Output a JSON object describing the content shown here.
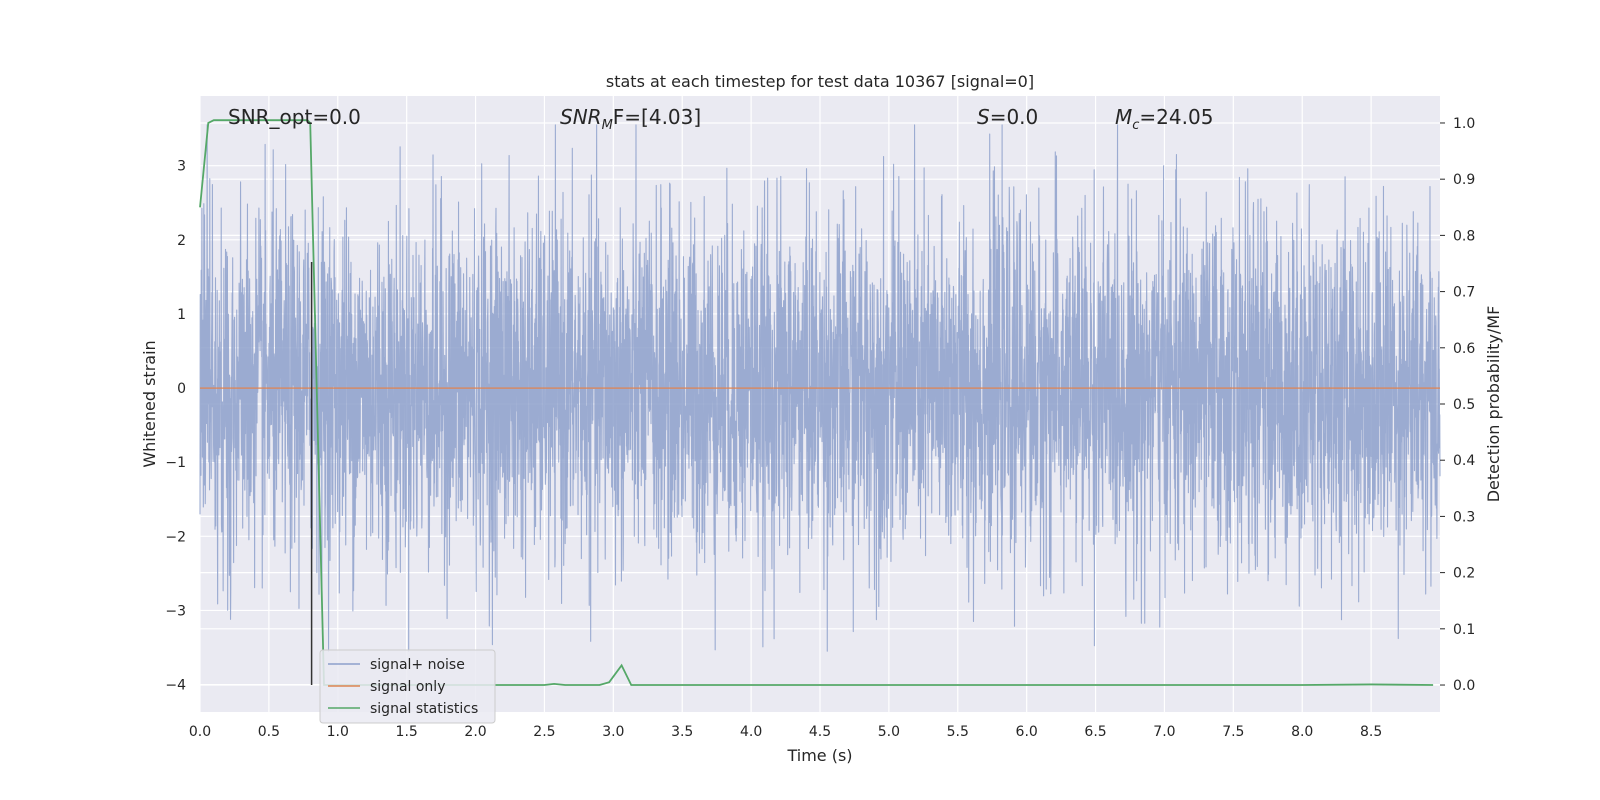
{
  "chart_data": {
    "type": "line",
    "title": "stats at each timestep for test data 10367 [signal=0]",
    "xlabel": "Time (s)",
    "ylabel_left": "Whitened strain",
    "ylabel_right": "Detection probability/MF",
    "xlim": [
      0.0,
      9.0
    ],
    "ylim_left": [
      -4.37,
      3.94
    ],
    "ylim_right": [
      -0.048,
      1.048
    ],
    "x_ticks": [
      "0.0",
      "0.5",
      "1.0",
      "1.5",
      "2.0",
      "2.5",
      "3.0",
      "3.5",
      "4.0",
      "4.5",
      "5.0",
      "5.5",
      "6.0",
      "6.5",
      "7.0",
      "7.5",
      "8.0",
      "8.5"
    ],
    "y_left_ticks": [
      "3",
      "2",
      "1",
      "0",
      "−1",
      "−2",
      "−3",
      "−4"
    ],
    "y_right_ticks": [
      "1.0",
      "0.9",
      "0.8",
      "0.7",
      "0.6",
      "0.5",
      "0.4",
      "0.3",
      "0.2",
      "0.1",
      "0.0"
    ],
    "grid": true,
    "legend_placement": "lower-left",
    "annotations": {
      "snr_opt": "SNR_opt=0.0",
      "snr_mf_sym": "SNR",
      "snr_mf_sub": "M",
      "snr_mf_rest": "F=[4.03]",
      "s_sym": "S",
      "s_rest": "=0.0",
      "mc_sym": "M",
      "mc_sub": "c",
      "mc_rest": "=24.05"
    },
    "marker_line_x": 0.81,
    "series": [
      {
        "name": "signal+ noise",
        "color": "#8da0cb",
        "note_values": "noise, approx amplitude 1.2 std, spikes to ~±3.4"
      },
      {
        "name": "signal only",
        "color": "#dd8452",
        "values": "0 at all times"
      },
      {
        "name": "signal statistics",
        "color": "#55a868",
        "axis": "right",
        "x": [
          0.0,
          0.06,
          0.1,
          0.2,
          0.4,
          0.6,
          0.7,
          0.78,
          0.8,
          0.85,
          0.9,
          1.0,
          1.5,
          2.0,
          2.5,
          2.57,
          2.65,
          2.9,
          2.97,
          3.06,
          3.13,
          3.5,
          4.0,
          5.0,
          6.0,
          7.0,
          8.0,
          8.5,
          8.95
        ],
        "y": [
          0.85,
          1.0,
          1.005,
          1.005,
          1.005,
          1.005,
          1.005,
          1.005,
          1.0,
          0.5,
          0.0,
          0.0,
          0.0,
          0.0,
          0.0,
          0.002,
          0.0,
          0.0,
          0.005,
          0.035,
          0.0,
          0.0,
          0.0,
          0.0,
          0.0,
          0.0,
          0.0,
          0.001,
          0.0
        ]
      }
    ]
  }
}
